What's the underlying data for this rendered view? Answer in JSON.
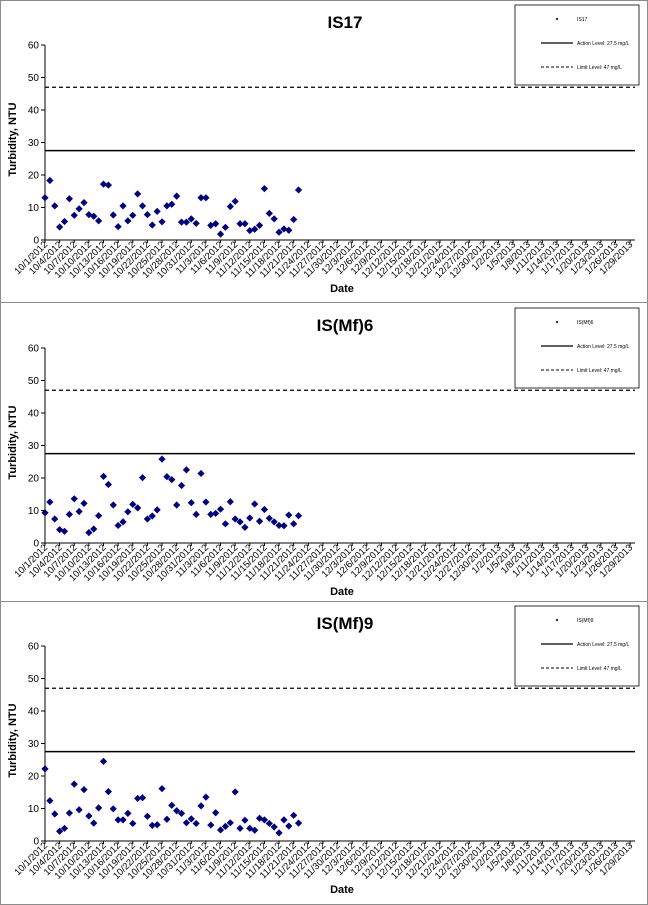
{
  "chart_data": [
    {
      "type": "scatter",
      "title": "IS17",
      "xlabel": "Date",
      "ylabel": "Turbidity, NTU",
      "ylim": [
        0,
        60
      ],
      "yticks": [
        0,
        10,
        20,
        30,
        40,
        50,
        60
      ],
      "categories": [
        "10/1/2012",
        "10/4/2012",
        "10/7/2012",
        "10/10/2012",
        "10/13/2012",
        "10/16/2012",
        "10/19/2012",
        "10/22/2012",
        "10/25/2012",
        "10/28/2012",
        "10/31/2012",
        "11/3/2012",
        "11/6/2012",
        "11/9/2012",
        "11/12/2012",
        "11/15/2012",
        "11/18/2012",
        "11/21/2012",
        "11/24/2012",
        "11/27/2012",
        "11/30/2012",
        "12/3/2012",
        "12/6/2012",
        "12/9/2012",
        "12/12/2012",
        "12/15/2012",
        "12/18/2012",
        "12/21/2012",
        "12/24/2012",
        "12/27/2012",
        "12/30/2012",
        "1/2/2013",
        "1/5/2013",
        "1/8/2013",
        "1/11/2013",
        "1/14/2013",
        "1/17/2013",
        "1/20/2013",
        "1/23/2013",
        "1/26/2013",
        "1/29/2013"
      ],
      "xrange": [
        "10/1/2012",
        "1/30/2013"
      ],
      "legend_position": "top-right",
      "grid": false,
      "series": [
        {
          "name": "IS17",
          "marker": "diamond",
          "color": "#000080",
          "points": [
            [
              "10/1/2012",
              13
            ],
            [
              "10/2/2012",
              18.3
            ],
            [
              "10/3/2012",
              10.5
            ],
            [
              "10/4/2012",
              4
            ],
            [
              "10/5/2012",
              5.7
            ],
            [
              "10/6/2012",
              12.7
            ],
            [
              "10/7/2012",
              7.6
            ],
            [
              "10/8/2012",
              9.6
            ],
            [
              "10/9/2012",
              11.5
            ],
            [
              "10/10/2012",
              7.8
            ],
            [
              "10/11/2012",
              7.3
            ],
            [
              "10/12/2012",
              5.9
            ],
            [
              "10/13/2012",
              17.2
            ],
            [
              "10/14/2012",
              16.9
            ],
            [
              "10/15/2012",
              7.7
            ],
            [
              "10/16/2012",
              4.1
            ],
            [
              "10/17/2012",
              10.5
            ],
            [
              "10/18/2012",
              5.9
            ],
            [
              "10/19/2012",
              7.6
            ],
            [
              "10/20/2012",
              14.2
            ],
            [
              "10/21/2012",
              10.5
            ],
            [
              "10/22/2012",
              7.8
            ],
            [
              "10/23/2012",
              4.6
            ],
            [
              "10/24/2012",
              8.8
            ],
            [
              "10/25/2012",
              5.6
            ],
            [
              "10/26/2012",
              10.5
            ],
            [
              "10/27/2012",
              11
            ],
            [
              "10/28/2012",
              13.5
            ],
            [
              "10/29/2012",
              5.5
            ],
            [
              "10/30/2012",
              5.5
            ],
            [
              "10/31/2012",
              6.5
            ],
            [
              "11/1/2012",
              5.1
            ],
            [
              "11/2/2012",
              13
            ],
            [
              "11/3/2012",
              13
            ],
            [
              "11/4/2012",
              4.5
            ],
            [
              "11/5/2012",
              5
            ],
            [
              "11/6/2012",
              1.8
            ],
            [
              "11/7/2012",
              3.9
            ],
            [
              "11/8/2012",
              10.3
            ],
            [
              "11/9/2012",
              11.9
            ],
            [
              "11/10/2012",
              5
            ],
            [
              "11/11/2012",
              5
            ],
            [
              "11/12/2012",
              2.9
            ],
            [
              "11/13/2012",
              3.3
            ],
            [
              "11/14/2012",
              4.5
            ],
            [
              "11/15/2012",
              15.8
            ],
            [
              "11/16/2012",
              8.2
            ],
            [
              "11/17/2012",
              6.5
            ],
            [
              "11/18/2012",
              2.4
            ],
            [
              "11/19/2012",
              3.4
            ],
            [
              "11/20/2012",
              3
            ],
            [
              "11/21/2012",
              6.3
            ],
            [
              "11/22/2012",
              15.4
            ]
          ]
        },
        {
          "name": "Action Level: 27.5 mg/L",
          "line": "solid",
          "value": 27.5
        },
        {
          "name": "Limit Level: 47 mg/L",
          "line": "dashed",
          "value": 47
        }
      ]
    },
    {
      "type": "scatter",
      "title": "IS(Mf)6",
      "xlabel": "Date",
      "ylabel": "Turbidity, NTU",
      "ylim": [
        0,
        60
      ],
      "yticks": [
        0,
        10,
        20,
        30,
        40,
        50,
        60
      ],
      "categories": [
        "10/1/2012",
        "10/4/2012",
        "10/7/2012",
        "10/10/2012",
        "10/13/2012",
        "10/16/2012",
        "10/19/2012",
        "10/22/2012",
        "10/25/2012",
        "10/28/2012",
        "10/31/2012",
        "11/3/2012",
        "11/6/2012",
        "11/9/2012",
        "11/12/2012",
        "11/15/2012",
        "11/18/2012",
        "11/21/2012",
        "11/24/2012",
        "11/27/2012",
        "11/30/2012",
        "12/3/2012",
        "12/6/2012",
        "12/9/2012",
        "12/12/2012",
        "12/15/2012",
        "12/18/2012",
        "12/21/2012",
        "12/24/2012",
        "12/27/2012",
        "12/30/2012",
        "1/2/2013",
        "1/5/2013",
        "1/8/2013",
        "1/11/2013",
        "1/14/2013",
        "1/17/2013",
        "1/20/2013",
        "1/23/2013",
        "1/26/2013",
        "1/29/2013"
      ],
      "xrange": [
        "10/1/2012",
        "1/30/2013"
      ],
      "legend_position": "top-right",
      "grid": false,
      "series": [
        {
          "name": "IS(Mf)6",
          "marker": "diamond",
          "color": "#000080",
          "points": [
            [
              "10/1/2012",
              9.3
            ],
            [
              "10/2/2012",
              12.6
            ],
            [
              "10/3/2012",
              7.4
            ],
            [
              "10/4/2012",
              4.1
            ],
            [
              "10/5/2012",
              3.6
            ],
            [
              "10/6/2012",
              8.8
            ],
            [
              "10/7/2012",
              13.6
            ],
            [
              "10/8/2012",
              9.7
            ],
            [
              "10/9/2012",
              12.2
            ],
            [
              "10/10/2012",
              3.2
            ],
            [
              "10/11/2012",
              4.3
            ],
            [
              "10/12/2012",
              8.4
            ],
            [
              "10/13/2012",
              20.5
            ],
            [
              "10/14/2012",
              18
            ],
            [
              "10/15/2012",
              11.7
            ],
            [
              "10/16/2012",
              5.4
            ],
            [
              "10/17/2012",
              6.5
            ],
            [
              "10/18/2012",
              9.6
            ],
            [
              "10/19/2012",
              11.9
            ],
            [
              "10/20/2012",
              10.8
            ],
            [
              "10/21/2012",
              20.1
            ],
            [
              "10/22/2012",
              7.4
            ],
            [
              "10/23/2012",
              8.3
            ],
            [
              "10/24/2012",
              10.2
            ],
            [
              "10/25/2012",
              25.8
            ],
            [
              "10/26/2012",
              20.4
            ],
            [
              "10/27/2012",
              19.5
            ],
            [
              "10/28/2012",
              11.7
            ],
            [
              "10/29/2012",
              17.7
            ],
            [
              "10/30/2012",
              22.5
            ],
            [
              "10/31/2012",
              12.4
            ],
            [
              "11/1/2012",
              8.8
            ],
            [
              "11/2/2012",
              21.4
            ],
            [
              "11/3/2012",
              12.6
            ],
            [
              "11/4/2012",
              8.8
            ],
            [
              "11/5/2012",
              9.1
            ],
            [
              "11/6/2012",
              10.4
            ],
            [
              "11/7/2012",
              5.9
            ],
            [
              "11/8/2012",
              12.7
            ],
            [
              "11/9/2012",
              7.4
            ],
            [
              "11/10/2012",
              6.5
            ],
            [
              "11/11/2012",
              4.8
            ],
            [
              "11/12/2012",
              7.7
            ],
            [
              "11/13/2012",
              12
            ],
            [
              "11/14/2012",
              6.7
            ],
            [
              "11/15/2012",
              10.3
            ],
            [
              "11/16/2012",
              7.6
            ],
            [
              "11/17/2012",
              6.5
            ],
            [
              "11/18/2012",
              5.4
            ],
            [
              "11/19/2012",
              5.3
            ],
            [
              "11/20/2012",
              8.6
            ],
            [
              "11/21/2012",
              5.9
            ],
            [
              "11/22/2012",
              8.4
            ]
          ]
        },
        {
          "name": "Action Level: 27.5 mg/L",
          "line": "solid",
          "value": 27.5
        },
        {
          "name": "Limit Level: 47 mg/L",
          "line": "dashed",
          "value": 47
        }
      ]
    },
    {
      "type": "scatter",
      "title": "IS(Mf)9",
      "xlabel": "Date",
      "ylabel": "Turbidity, NTU",
      "ylim": [
        0,
        60
      ],
      "yticks": [
        0,
        10,
        20,
        30,
        40,
        50,
        60
      ],
      "categories": [
        "10/1/2012",
        "10/4/2012",
        "10/7/2012",
        "10/10/2012",
        "10/13/2012",
        "10/16/2012",
        "10/19/2012",
        "10/22/2012",
        "10/25/2012",
        "10/28/2012",
        "10/31/2012",
        "11/3/2012",
        "11/6/2012",
        "11/9/2012",
        "11/12/2012",
        "11/15/2012",
        "11/18/2012",
        "11/21/2012",
        "11/24/2012",
        "11/27/2012",
        "11/30/2012",
        "12/3/2012",
        "12/6/2012",
        "12/9/2012",
        "12/12/2012",
        "12/15/2012",
        "12/18/2012",
        "12/21/2012",
        "12/24/2012",
        "12/27/2012",
        "12/30/2012",
        "1/2/2013",
        "1/5/2013",
        "1/8/2013",
        "1/11/2013",
        "1/14/2013",
        "1/17/2013",
        "1/20/2013",
        "1/23/2013",
        "1/26/2013",
        "1/29/2013"
      ],
      "xrange": [
        "10/1/2012",
        "1/30/2013"
      ],
      "legend_position": "top-right",
      "grid": false,
      "series": [
        {
          "name": "IS(Mf)9",
          "marker": "diamond",
          "color": "#000080",
          "points": [
            [
              "10/1/2012",
              22.2
            ],
            [
              "10/2/2012",
              12.4
            ],
            [
              "10/3/2012",
              8.3
            ],
            [
              "10/4/2012",
              3
            ],
            [
              "10/5/2012",
              3.9
            ],
            [
              "10/6/2012",
              8.6
            ],
            [
              "10/7/2012",
              17.5
            ],
            [
              "10/8/2012",
              9.6
            ],
            [
              "10/9/2012",
              15.8
            ],
            [
              "10/10/2012",
              7.7
            ],
            [
              "10/11/2012",
              5.5
            ],
            [
              "10/12/2012",
              10.2
            ],
            [
              "10/13/2012",
              24.5
            ],
            [
              "10/14/2012",
              15.2
            ],
            [
              "10/15/2012",
              9.9
            ],
            [
              "10/16/2012",
              6.5
            ],
            [
              "10/17/2012",
              6.5
            ],
            [
              "10/18/2012",
              8.5
            ],
            [
              "10/19/2012",
              5.4
            ],
            [
              "10/20/2012",
              13.1
            ],
            [
              "10/21/2012",
              13.3
            ],
            [
              "10/22/2012",
              7.6
            ],
            [
              "10/23/2012",
              4.8
            ],
            [
              "10/24/2012",
              5
            ],
            [
              "10/25/2012",
              16.1
            ],
            [
              "10/26/2012",
              6.7
            ],
            [
              "10/27/2012",
              11
            ],
            [
              "10/28/2012",
              9.3
            ],
            [
              "10/29/2012",
              8.5
            ],
            [
              "10/30/2012",
              5.6
            ],
            [
              "10/31/2012",
              6.8
            ],
            [
              "11/1/2012",
              5.4
            ],
            [
              "11/2/2012",
              10.8
            ],
            [
              "11/3/2012",
              13.5
            ],
            [
              "11/4/2012",
              4.9
            ],
            [
              "11/5/2012",
              8.7
            ],
            [
              "11/6/2012",
              3.4
            ],
            [
              "11/7/2012",
              4.5
            ],
            [
              "11/8/2012",
              5.6
            ],
            [
              "11/9/2012",
              15.1
            ],
            [
              "11/10/2012",
              3.9
            ],
            [
              "11/11/2012",
              6.4
            ],
            [
              "11/12/2012",
              3.9
            ],
            [
              "11/13/2012",
              3.3
            ],
            [
              "11/14/2012",
              7
            ],
            [
              "11/15/2012",
              6.5
            ],
            [
              "11/16/2012",
              5.4
            ],
            [
              "11/17/2012",
              4.3
            ],
            [
              "11/18/2012",
              2.5
            ],
            [
              "11/19/2012",
              6.5
            ],
            [
              "11/20/2012",
              4.6
            ],
            [
              "11/21/2012",
              7.9
            ],
            [
              "11/22/2012",
              5.5
            ]
          ]
        },
        {
          "name": "Action Level: 27.5 mg/L",
          "line": "solid",
          "value": 27.5
        },
        {
          "name": "Limit Level: 47 mg/L",
          "line": "dashed",
          "value": 47
        }
      ]
    }
  ]
}
